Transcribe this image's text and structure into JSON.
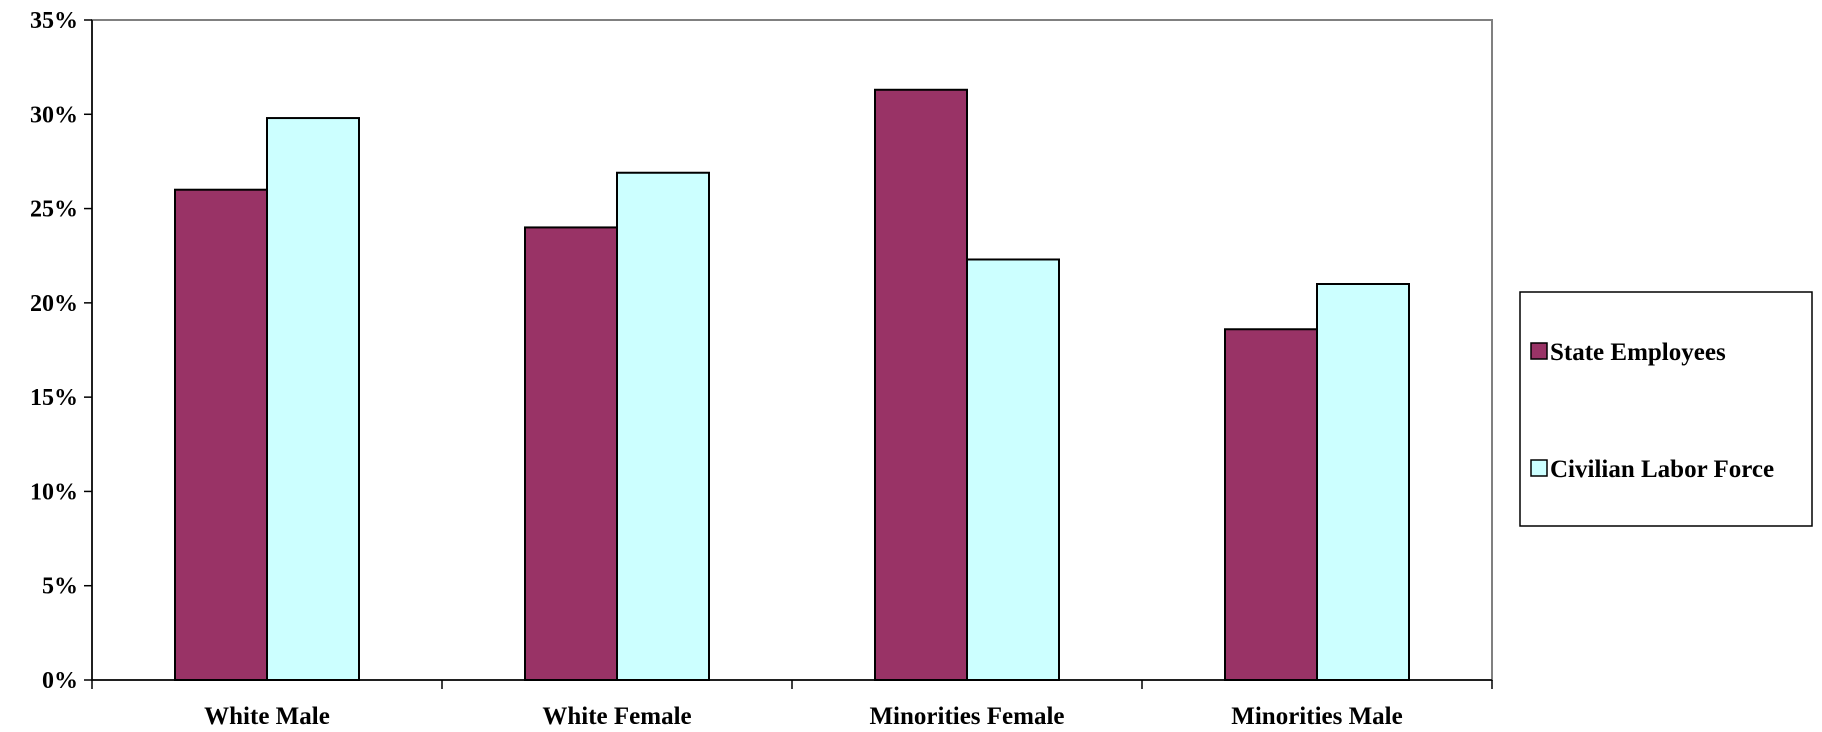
{
  "chart_data": {
    "type": "bar",
    "title": "",
    "xlabel": "",
    "ylabel": "",
    "categories": [
      "White Male",
      "White Female",
      "Minorities Female",
      "Minorities Male"
    ],
    "series": [
      {
        "name": "State Employees",
        "values": [
          26.0,
          24.0,
          31.3,
          18.6
        ],
        "color": "#993366"
      },
      {
        "name": "Civilian Labor Force",
        "values": [
          29.8,
          26.9,
          22.3,
          21.0
        ],
        "color": "#CCFFFF"
      }
    ],
    "ylim": [
      0,
      35
    ],
    "yticks": [
      0,
      5,
      10,
      15,
      20,
      25,
      30,
      35
    ],
    "ytick_labels": [
      "0%",
      "5%",
      "10%",
      "15%",
      "20%",
      "25%",
      "30%",
      "35%"
    ],
    "grid": false,
    "legend_position": "right"
  }
}
